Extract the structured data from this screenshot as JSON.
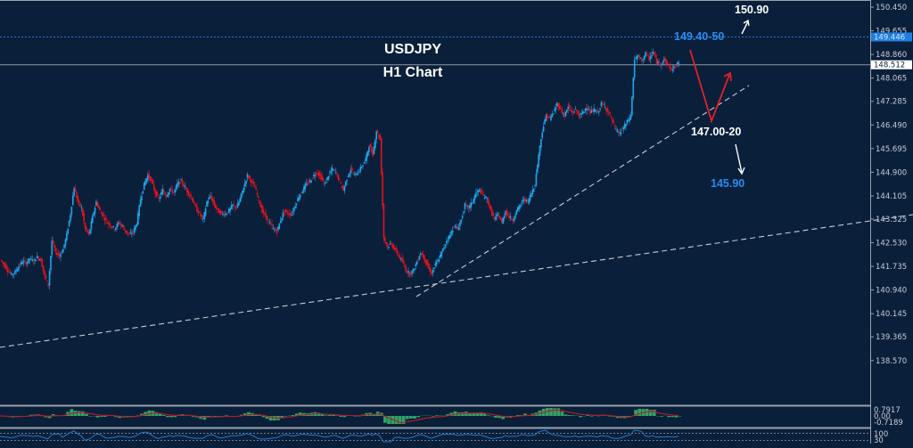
{
  "chart_data": {
    "type": "candlestick",
    "title": "USDJPY",
    "subtitle": "H1 Chart",
    "symbol": "USDJPY",
    "timeframe": "H1",
    "colors": {
      "background": "#0a1f3a",
      "bull": "#1ea7ea",
      "bear": "#e3131e",
      "grid_axis": "#9aa3ad",
      "annotation_blue": "#2a8cf0",
      "annotation_white": "#ffffff",
      "forecast_red": "#e3202b",
      "trendline": "#c8ccd2",
      "macd_hist": "#35b36b",
      "macd_signal": "#b01e2a",
      "rsi_line": "#2a78c8"
    },
    "price_axis": {
      "ticks": [
        "150.450",
        "149.655",
        "148.860",
        "148.065",
        "147.285",
        "146.490",
        "145.695",
        "144.900",
        "144.105",
        "143.325",
        "142.530",
        "141.735",
        "140.940",
        "140.145",
        "139.365",
        "138.570"
      ],
      "range": [
        138.2,
        150.6
      ],
      "current_price": "148.512",
      "marked_level": "149.446"
    },
    "annotations": {
      "resistance_label": "149.40-50",
      "upside_target": "150.90",
      "support_label": "147.00-20",
      "downside_target": "145.90"
    },
    "macd_axis": {
      "upper": "0.7917",
      "zero": "0.00",
      "lower": "-0.7189"
    },
    "rsi_axis": {
      "upper": "100",
      "mid": "70",
      "lower": "30"
    },
    "price_path": [
      141.95,
      141.8,
      141.6,
      141.45,
      141.55,
      141.75,
      141.9,
      141.85,
      142.0,
      141.9,
      142.05,
      141.95,
      141.4,
      141.1,
      142.6,
      142.2,
      142.1,
      142.3,
      142.8,
      143.5,
      144.4,
      143.9,
      143.7,
      143.0,
      142.8,
      143.4,
      143.9,
      143.6,
      143.4,
      143.2,
      143.1,
      143.0,
      143.2,
      143.1,
      142.9,
      142.8,
      142.9,
      143.2,
      144.0,
      144.5,
      144.8,
      144.6,
      144.2,
      144.0,
      144.3,
      144.1,
      144.35,
      144.2,
      144.5,
      144.6,
      144.4,
      144.2,
      144.0,
      143.7,
      143.5,
      143.3,
      143.9,
      144.1,
      143.8,
      143.6,
      143.5,
      143.5,
      143.6,
      143.8,
      143.7,
      144.0,
      144.4,
      144.8,
      144.6,
      144.4,
      144.0,
      143.6,
      143.4,
      143.2,
      143.0,
      142.9,
      143.3,
      143.6,
      143.5,
      143.5,
      143.8,
      144.1,
      144.3,
      144.5,
      144.6,
      144.8,
      144.9,
      144.7,
      144.5,
      144.8,
      145.0,
      144.9,
      144.6,
      144.3,
      144.7,
      145.0,
      144.8,
      144.9,
      145.1,
      145.3,
      145.8,
      145.5,
      146.3,
      146.0,
      142.7,
      142.4,
      142.5,
      142.3,
      142.1,
      141.9,
      141.6,
      141.5,
      141.6,
      141.9,
      142.2,
      142.0,
      141.7,
      141.5,
      141.8,
      142.0,
      142.3,
      142.6,
      142.8,
      143.1,
      143.0,
      143.3,
      143.8,
      143.7,
      143.9,
      144.2,
      144.3,
      144.1,
      144.0,
      143.6,
      143.3,
      143.5,
      143.2,
      143.6,
      143.4,
      143.3,
      143.6,
      143.8,
      144.0,
      143.9,
      144.2,
      144.5,
      145.5,
      146.3,
      146.8,
      146.7,
      146.9,
      147.2,
      147.0,
      146.8,
      147.1,
      146.9,
      147.0,
      146.8,
      146.9,
      147.1,
      146.9,
      147.0,
      146.9,
      147.2,
      147.1,
      146.9,
      146.6,
      146.3,
      146.2,
      146.4,
      146.6,
      146.8,
      148.7,
      148.8,
      148.65,
      148.9,
      148.7,
      148.95,
      148.6,
      148.55,
      148.7,
      148.5,
      148.35,
      148.45,
      148.6
    ],
    "trendlines": [
      {
        "from": [
          0,
          390
        ],
        "to": [
          1024,
          241
        ]
      },
      {
        "from": [
          467,
          333
        ],
        "to": [
          840,
          96
        ]
      }
    ],
    "xlabel": "",
    "ylabel": ""
  },
  "header": {
    "title": "USDJPY",
    "subtitle": "H1 Chart"
  },
  "price_axis_badges": {
    "current": "148.512",
    "level": "149.446"
  }
}
